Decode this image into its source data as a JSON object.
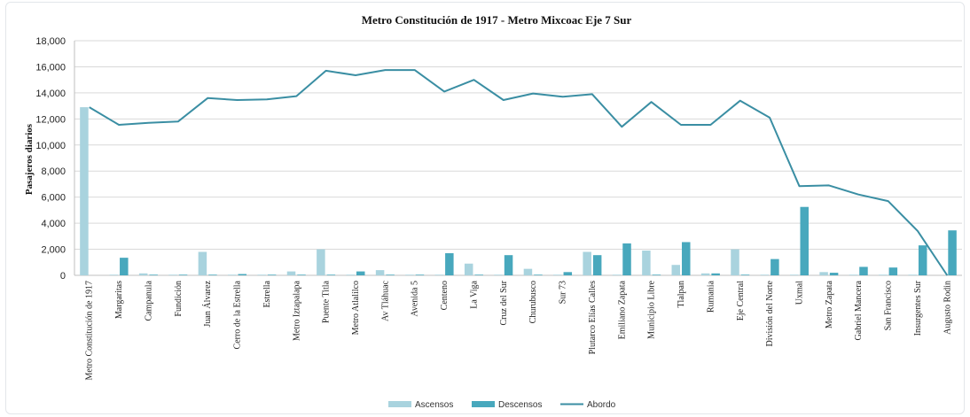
{
  "chart_data": {
    "type": "bar",
    "title": "Metro Constitución  de 1917 - Metro Mixcoac  Eje 7 Sur",
    "xlabel": "",
    "ylabel": "Pasajeros diarios",
    "ylim": [
      0,
      18000
    ],
    "yticks": [
      "0",
      "2,000",
      "4,000",
      "6,000",
      "8,000",
      "10,000",
      "12,000",
      "14,000",
      "16,000",
      "18,000"
    ],
    "grid": true,
    "legend_position": "bottom",
    "categories": [
      "Metro Constitución de 1917",
      "Margaritas",
      "Campanula",
      "Fundición",
      "Juan Álvarez",
      "Cerro de la Estrella",
      "Estrella",
      "Metro Iztapalapa",
      "Puente Titla",
      "Metro Atlalilco",
      "Av Tláhuac",
      "Avenida 5",
      "Centeno",
      "La Viga",
      "Cruz del Sur",
      "Churubusco",
      "Sur 73",
      "Plutarco Elías Calles",
      "Emiliano Zapata",
      "Municipio Libre",
      "Tlalpan",
      "Rumania",
      "Eje Central",
      "División del Norte",
      "Uxmal",
      "Metro Zapata",
      "Gabriel Mancera",
      "San Francisco",
      "Insurgentes Sur",
      "Augusto Rodin"
    ],
    "series": [
      {
        "name": "Ascensos",
        "kind": "bar",
        "color": "#a9d3de",
        "values": [
          12900,
          50,
          150,
          50,
          1800,
          50,
          50,
          300,
          2000,
          50,
          400,
          50,
          50,
          900,
          50,
          500,
          50,
          1800,
          50,
          1900,
          800,
          150,
          2000,
          50,
          50,
          250,
          50,
          50,
          50,
          0
        ]
      },
      {
        "name": "Descensos",
        "kind": "bar",
        "color": "#48a8bd",
        "values": [
          0,
          1350,
          50,
          50,
          50,
          100,
          50,
          50,
          50,
          300,
          50,
          50,
          1700,
          50,
          1550,
          50,
          250,
          1550,
          2450,
          50,
          2550,
          150,
          50,
          1250,
          5250,
          200,
          650,
          600,
          2300,
          3450
        ]
      },
      {
        "name": "Abordo",
        "kind": "line",
        "color": "#3a8ea3",
        "values": [
          12900,
          11550,
          11700,
          11800,
          13600,
          13450,
          13500,
          13750,
          15700,
          15350,
          15750,
          15750,
          14100,
          15000,
          13450,
          13950,
          13700,
          13900,
          11400,
          13300,
          11550,
          11550,
          13400,
          12100,
          6850,
          6900,
          6200,
          5700,
          3400,
          0
        ]
      }
    ]
  }
}
